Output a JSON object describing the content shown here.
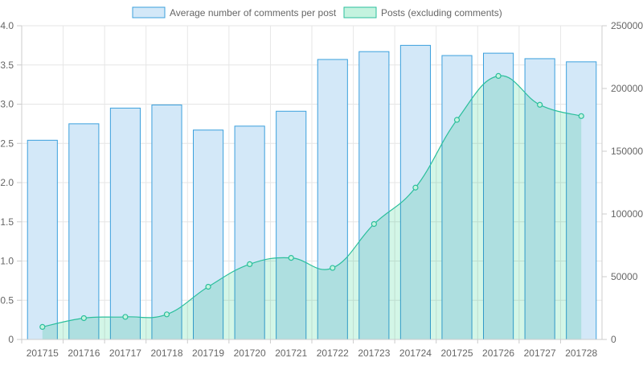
{
  "colors": {
    "bar_fill": "#d3e8f8",
    "bar_stroke": "#3ba0dd",
    "area_fill": "#c4f3df",
    "line_stroke": "#2bbf9c",
    "grid": "#e6e6e6",
    "tick_text": "#666666",
    "overlap": "#b0e2e6"
  },
  "chart_data": {
    "type": "bar",
    "categories": [
      "201715",
      "201716",
      "201717",
      "201718",
      "201719",
      "201720",
      "201721",
      "201722",
      "201723",
      "201724",
      "201725",
      "201726",
      "201727",
      "201728"
    ],
    "series": [
      {
        "name": "Average number of comments per post",
        "type": "bar",
        "axis": "left",
        "values": [
          2.54,
          2.75,
          2.95,
          2.99,
          2.67,
          2.72,
          2.91,
          3.57,
          3.67,
          3.75,
          3.62,
          3.65,
          3.58,
          3.54
        ]
      },
      {
        "name": "Posts (excluding comments)",
        "type": "area",
        "axis": "right",
        "values": [
          10000,
          17000,
          18000,
          20000,
          42000,
          60000,
          65000,
          57000,
          92000,
          121000,
          175000,
          210000,
          187000,
          178000
        ]
      }
    ],
    "y_left": {
      "min": 0,
      "max": 4.0,
      "ticks": [
        "0",
        "0.5",
        "1.0",
        "1.5",
        "2.0",
        "2.5",
        "3.0",
        "3.5",
        "4.0"
      ]
    },
    "y_right": {
      "min": 0,
      "max": 250000,
      "ticks": [
        "0",
        "50000",
        "100000",
        "150000",
        "200000",
        "250000"
      ]
    },
    "grid": true,
    "legend_position": "top"
  }
}
